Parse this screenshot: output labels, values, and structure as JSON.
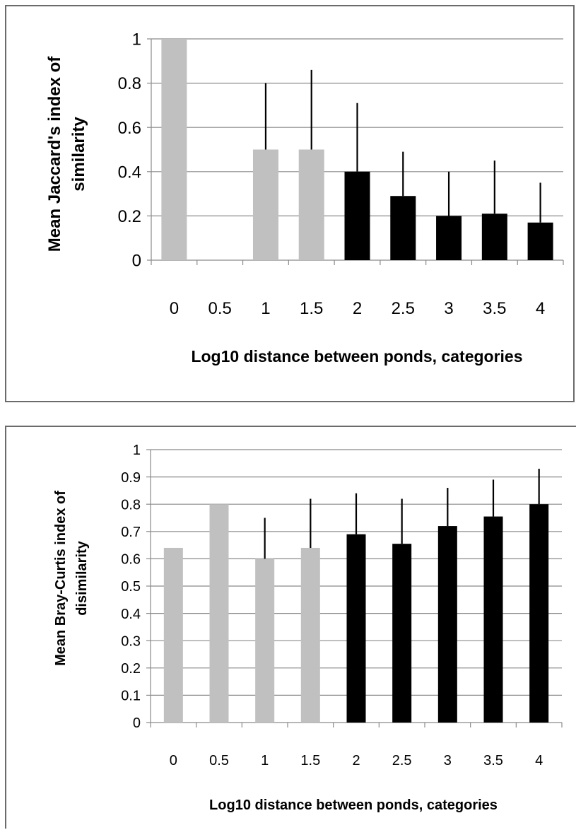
{
  "chart_data": [
    {
      "type": "bar",
      "categories": [
        "0",
        "0.5",
        "1",
        "1.5",
        "2",
        "2.5",
        "3",
        "3.5",
        "4"
      ],
      "values": [
        1.0,
        null,
        0.5,
        0.5,
        0.4,
        0.29,
        0.2,
        0.21,
        0.17
      ],
      "error_upper": [
        null,
        null,
        0.8,
        0.86,
        0.71,
        0.49,
        0.4,
        0.45,
        0.35
      ],
      "bar_colors": [
        "#c0c0c0",
        "#c0c0c0",
        "#c0c0c0",
        "#c0c0c0",
        "#000000",
        "#000000",
        "#000000",
        "#000000",
        "#000000"
      ],
      "ylabel_lines": [
        "Mean Jaccard's index of",
        "similarity"
      ],
      "xlabel": "Log10 distance between ponds, categories",
      "ylim": [
        0,
        1
      ],
      "yticks": [
        "0",
        "0.2",
        "0.4",
        "0.6",
        "0.8",
        "1"
      ],
      "grid": true
    },
    {
      "type": "bar",
      "categories": [
        "0",
        "0.5",
        "1",
        "1.5",
        "2",
        "2.5",
        "3",
        "3.5",
        "4"
      ],
      "values": [
        0.64,
        0.8,
        0.6,
        0.64,
        0.69,
        0.655,
        0.72,
        0.755,
        0.8
      ],
      "error_upper": [
        null,
        null,
        0.75,
        0.82,
        0.84,
        0.82,
        0.86,
        0.89,
        0.93
      ],
      "bar_colors": [
        "#c0c0c0",
        "#c0c0c0",
        "#c0c0c0",
        "#c0c0c0",
        "#000000",
        "#000000",
        "#000000",
        "#000000",
        "#000000"
      ],
      "ylabel_lines": [
        "Mean Bray-Curtis index of",
        "disimilarity"
      ],
      "xlabel": "Log10 distance between ponds, categories",
      "ylim": [
        0,
        1
      ],
      "yticks": [
        "0",
        "0.1",
        "0.2",
        "0.3",
        "0.4",
        "0.5",
        "0.6",
        "0.7",
        "0.8",
        "0.9",
        "1"
      ],
      "grid": true
    }
  ]
}
